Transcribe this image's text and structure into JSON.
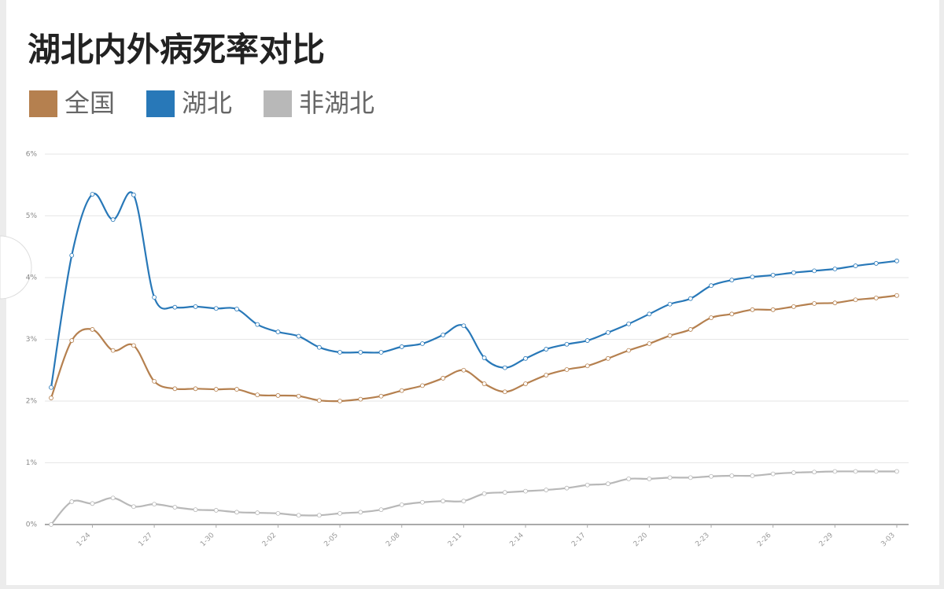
{
  "chart_data": {
    "type": "line",
    "title": "湖北内外病死率对比",
    "categories": [
      null,
      null,
      "1-24",
      null,
      null,
      "1-27",
      null,
      null,
      "1-30",
      null,
      null,
      "2-02",
      null,
      null,
      "2-05",
      null,
      null,
      "2-08",
      null,
      null,
      "2-11",
      null,
      null,
      "2-14",
      null,
      null,
      "2-17",
      null,
      null,
      "2-20",
      null,
      null,
      "2-23",
      null,
      null,
      "2-26",
      null,
      null,
      "2-29",
      null,
      null,
      "3-03"
    ],
    "series": [
      {
        "name": "全国",
        "color": "#b5804f",
        "values": [
          2.05,
          2.98,
          3.16,
          2.82,
          2.9,
          2.32,
          2.2,
          2.2,
          2.19,
          2.19,
          2.1,
          2.09,
          2.08,
          2.01,
          2.0,
          2.03,
          2.08,
          2.17,
          2.25,
          2.37,
          2.5,
          2.28,
          2.15,
          2.28,
          2.42,
          2.51,
          2.57,
          2.69,
          2.82,
          2.93,
          3.06,
          3.16,
          3.35,
          3.41,
          3.48,
          3.48,
          3.53,
          3.58,
          3.59,
          3.64,
          3.67,
          3.71
        ]
      },
      {
        "name": "湖北",
        "color": "#2878b8",
        "values": [
          2.22,
          4.36,
          5.35,
          4.94,
          5.34,
          3.68,
          3.52,
          3.53,
          3.5,
          3.49,
          3.24,
          3.12,
          3.05,
          2.87,
          2.79,
          2.79,
          2.79,
          2.88,
          2.93,
          3.07,
          3.22,
          2.7,
          2.54,
          2.69,
          2.84,
          2.92,
          2.98,
          3.11,
          3.25,
          3.41,
          3.57,
          3.66,
          3.87,
          3.96,
          4.01,
          4.04,
          4.08,
          4.11,
          4.14,
          4.19,
          4.23,
          4.27
        ]
      },
      {
        "name": "非湖北",
        "color": "#b8b8b8",
        "values": [
          0,
          0.37,
          0.34,
          0.43,
          0.29,
          0.33,
          0.28,
          0.24,
          0.23,
          0.2,
          0.19,
          0.18,
          0.15,
          0.15,
          0.18,
          0.2,
          0.24,
          0.32,
          0.36,
          0.38,
          0.38,
          0.5,
          0.52,
          0.54,
          0.56,
          0.59,
          0.64,
          0.66,
          0.74,
          0.74,
          0.76,
          0.76,
          0.78,
          0.79,
          0.79,
          0.82,
          0.84,
          0.85,
          0.86,
          0.86,
          0.86,
          0.86
        ]
      }
    ],
    "ylim": [
      0,
      6
    ],
    "yticks": [
      {
        "value": 0,
        "label": "0%"
      },
      {
        "value": 1,
        "label": "1%"
      },
      {
        "value": 2,
        "label": "2%"
      },
      {
        "value": 3,
        "label": "3%"
      },
      {
        "value": 4,
        "label": "4%"
      },
      {
        "value": 5,
        "label": "5%"
      },
      {
        "value": 6,
        "label": "6%"
      }
    ],
    "grid": true,
    "legend": "top-left"
  }
}
